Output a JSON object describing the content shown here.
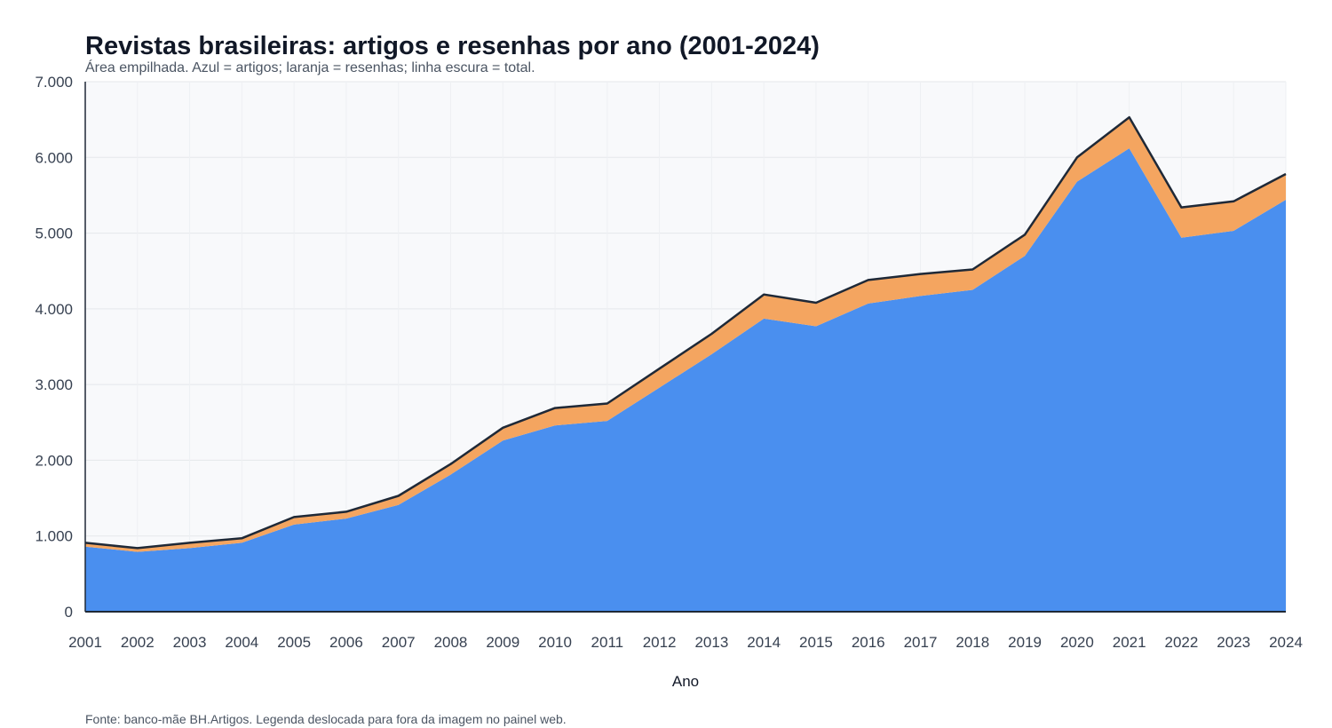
{
  "chart_data": {
    "type": "area",
    "stacked": true,
    "title": "Revistas brasileiras: artigos e resenhas por ano (2001-2024)",
    "subtitle": "Área empilhada. Azul = artigos; laranja = resenhas; linha escura = total.",
    "footer": "Fonte: banco-mãe BH.Artigos. Legenda deslocada para fora da imagem no painel web.",
    "xlabel": "Ano",
    "ylabel": "",
    "ylim": [
      0,
      7000
    ],
    "yticks": [
      0,
      1000,
      2000,
      3000,
      4000,
      5000,
      6000,
      7000
    ],
    "ytick_labels": [
      "0",
      "1.000",
      "2.000",
      "3.000",
      "4.000",
      "5.000",
      "6.000",
      "7.000"
    ],
    "grid": true,
    "x": [
      "2001",
      "2002",
      "2003",
      "2004",
      "2005",
      "2006",
      "2007",
      "2008",
      "2009",
      "2010",
      "2011",
      "2012",
      "2013",
      "2014",
      "2015",
      "2016",
      "2017",
      "2018",
      "2019",
      "2020",
      "2021",
      "2022",
      "2023",
      "2024"
    ],
    "series": [
      {
        "key": "artigos",
        "color": "#4a8fef",
        "values": [
          860,
          790,
          840,
          910,
          1150,
          1230,
          1410,
          1810,
          2260,
          2460,
          2520,
          2960,
          3400,
          3870,
          3770,
          4070,
          4170,
          4250,
          4700,
          5680,
          6120,
          4940,
          5030,
          5440
        ]
      },
      {
        "key": "resenhas",
        "color": "#f4a560",
        "values": [
          50,
          50,
          70,
          60,
          100,
          90,
          120,
          140,
          170,
          230,
          230,
          250,
          270,
          320,
          310,
          310,
          290,
          270,
          280,
          320,
          410,
          400,
          390,
          340
        ]
      }
    ],
    "total_line_color": "#1f2937",
    "plot_background": "#f8f9fb",
    "gridline_color": "#e5e7eb"
  }
}
